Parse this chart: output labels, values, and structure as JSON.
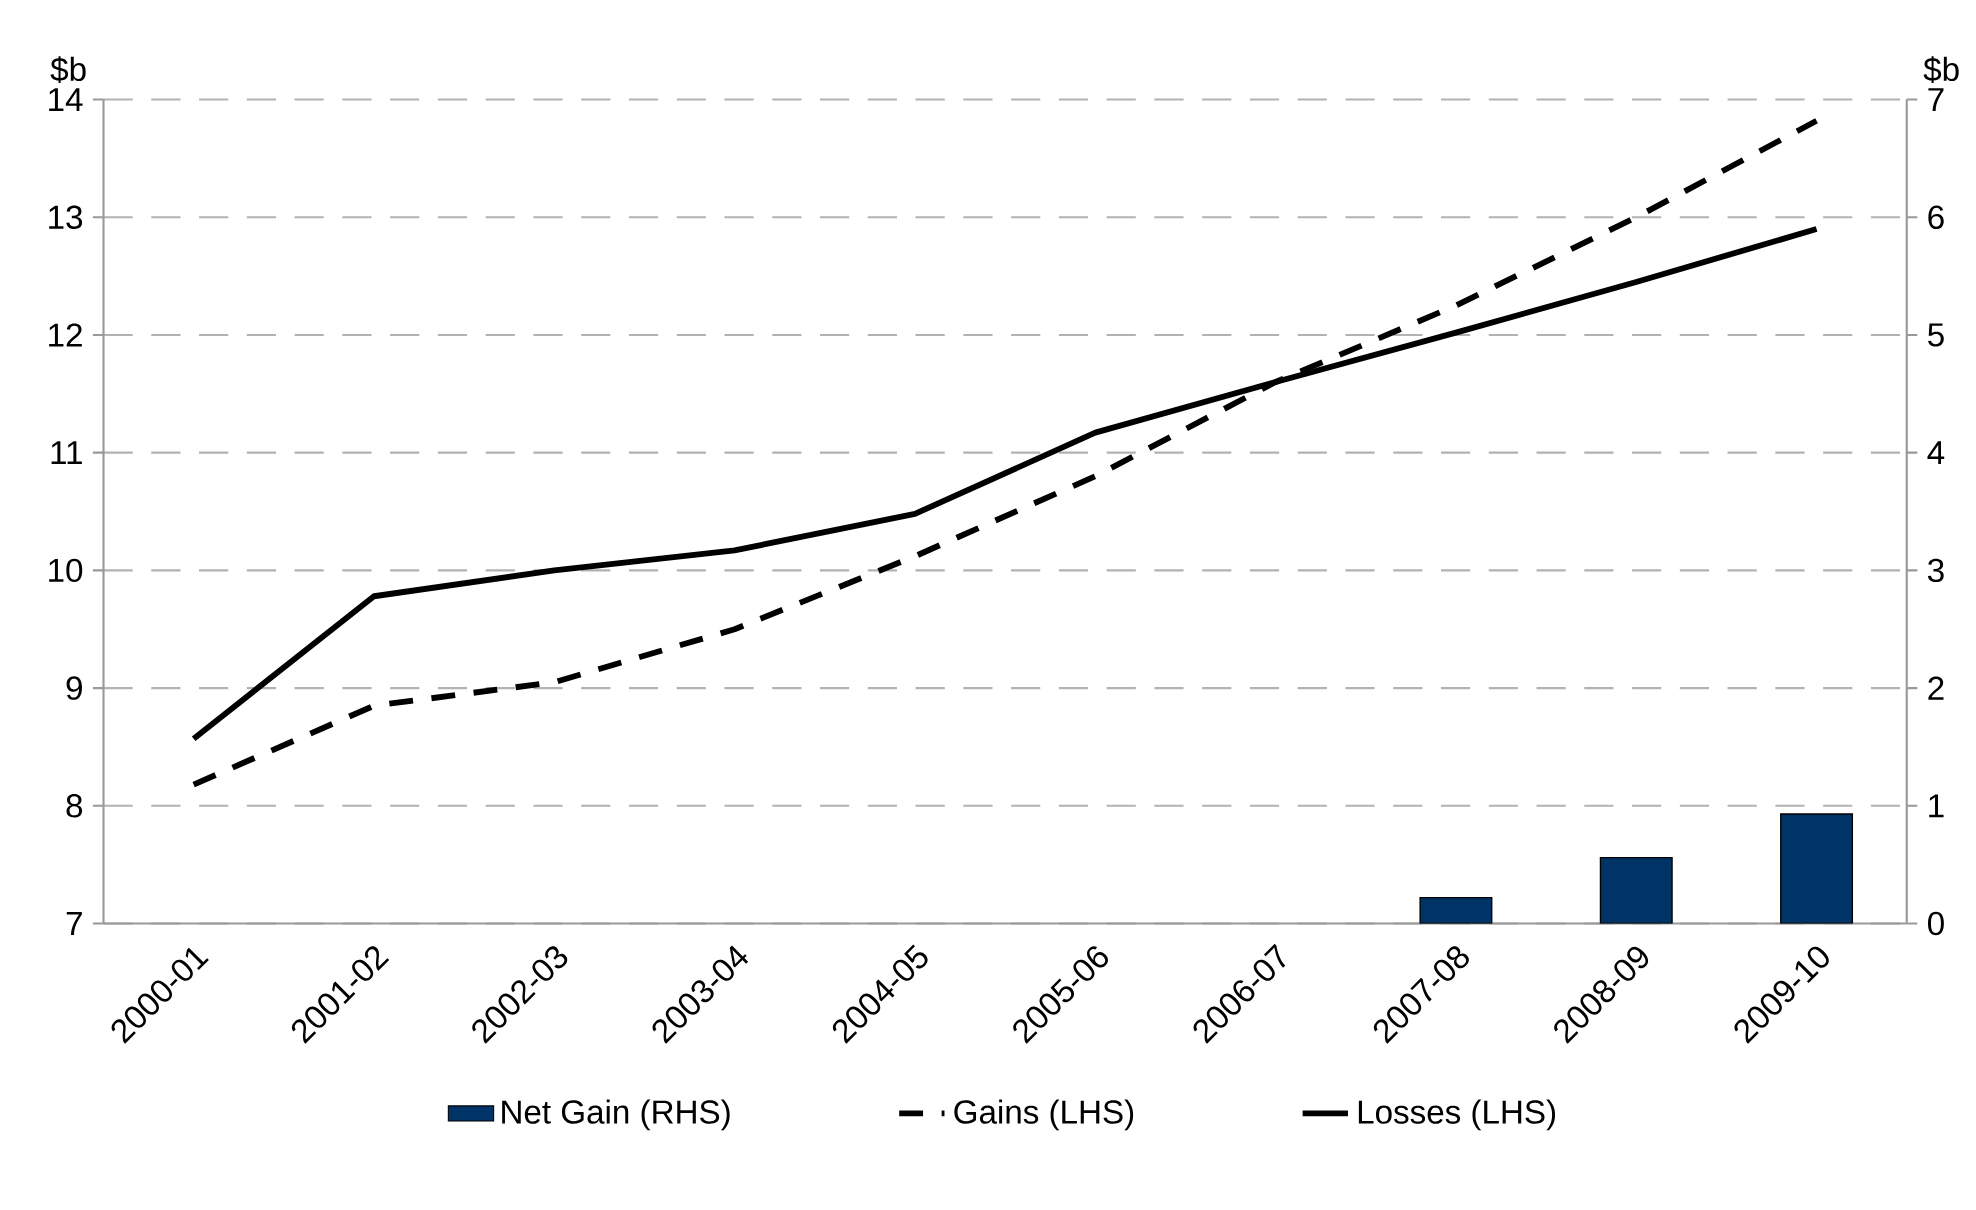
{
  "chart_data": {
    "type": "line",
    "ylabel": "$b",
    "y2label": "$b",
    "categories": [
      "2000-01",
      "2001-02",
      "2002-03",
      "2003-04",
      "2004-05",
      "2005-06",
      "2006-07",
      "2007-08",
      "2008-09",
      "2009-10"
    ],
    "series": [
      {
        "name": "Net Gain (RHS)",
        "type": "bar",
        "axis": "y2",
        "color": "#003366",
        "values": [
          null,
          null,
          null,
          null,
          null,
          null,
          null,
          0.22,
          0.56,
          0.93
        ]
      },
      {
        "name": "Gains (LHS)",
        "color": "#000000",
        "line_style": "dashed",
        "values": [
          8.18,
          8.85,
          9.05,
          9.5,
          10.12,
          10.8,
          11.6,
          12.25,
          13.0,
          13.82
        ]
      },
      {
        "name": "Losses (LHS)",
        "color": "#000000",
        "line_style": "solid",
        "values": [
          8.57,
          9.78,
          10.0,
          10.17,
          10.48,
          11.17,
          11.6,
          12.02,
          12.45,
          12.9
        ]
      }
    ],
    "ylim": [
      7,
      14
    ],
    "yticks": [
      7,
      8,
      9,
      10,
      11,
      12,
      13,
      14
    ],
    "y2lim": [
      0,
      7
    ],
    "y2ticks": [
      0,
      1,
      2,
      3,
      4,
      5,
      6,
      7
    ],
    "grid": "y",
    "legend": "bottom",
    "marker": "none"
  }
}
